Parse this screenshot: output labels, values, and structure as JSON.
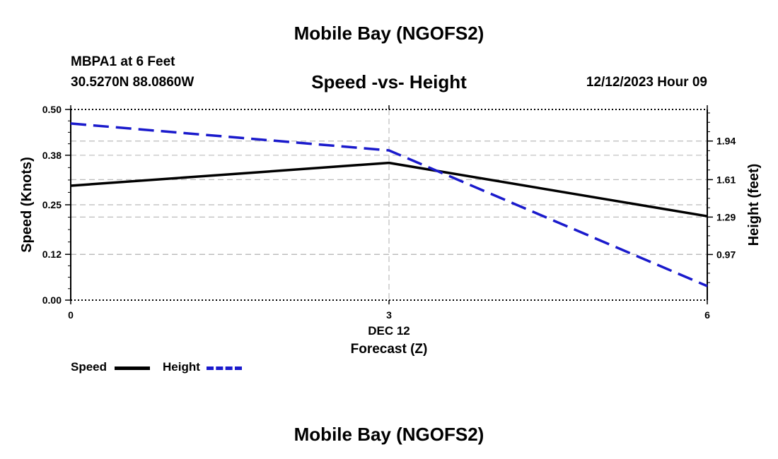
{
  "chart_data": {
    "type": "line",
    "title": "Mobile Bay (NGOFS2)",
    "subtitle": "Speed -vs- Height",
    "footer_title": "Mobile Bay (NGOFS2)",
    "station": "MBPA1 at 6 Feet",
    "coordinates": "30.5270N  88.0860W",
    "date": "12/12/2023 Hour 09",
    "xlabel": "Forecast (Z)",
    "x_date_label": "DEC 12",
    "x": [
      0,
      3,
      6
    ],
    "x_ticks": [
      "0",
      "3",
      "6"
    ],
    "xlim": [
      0,
      6
    ],
    "ylabel_left": "Speed (Knots)",
    "ylim_left": [
      0,
      0.5
    ],
    "yticks_left": [
      "0.00",
      "0.12",
      "0.25",
      "0.38",
      "0.50"
    ],
    "ylabel_right": "Height (feet)",
    "ylim_right": [
      0.58,
      2.21
    ],
    "yticks_right": [
      "0.97",
      "1.29",
      "1.61",
      "1.94"
    ],
    "yticks_right_values": [
      0.97,
      1.29,
      1.61,
      1.94
    ],
    "grid": true,
    "series": [
      {
        "name": "Speed",
        "axis": "left",
        "values": [
          0.3,
          0.36,
          0.22
        ],
        "color": "#000000",
        "style": "solid"
      },
      {
        "name": "Height",
        "axis": "right",
        "values": [
          2.09,
          1.86,
          0.7
        ],
        "color": "#1a1acc",
        "style": "dashed"
      }
    ],
    "legend": [
      "Speed",
      "Height"
    ]
  }
}
